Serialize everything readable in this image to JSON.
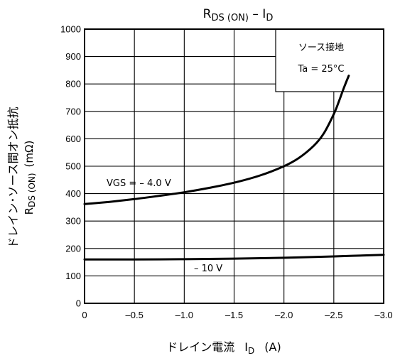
{
  "chart_data": {
    "type": "line",
    "title": {
      "main": "R",
      "main_sub": "DS (ON)",
      "sep": " – ",
      "tail": "I",
      "tail_sub": "D"
    },
    "xlabel": {
      "text": "ドレイン電流",
      "sym": "I",
      "sym_sub": "D",
      "unit": "(A)"
    },
    "ylabel": {
      "line1": "ドレイン･ソース間オン抵抗",
      "line2_main": "R",
      "line2_sub": "DS (ON)",
      "line2_unit": "(mΩ)"
    },
    "x_ticks": [
      "0",
      "–0.5",
      "–1.0",
      "–1.5",
      "–2.0",
      "–2.5",
      "–3.0"
    ],
    "x_tick_values": [
      0,
      -0.5,
      -1.0,
      -1.5,
      -2.0,
      -2.5,
      -3.0
    ],
    "y_ticks": [
      "0",
      "100",
      "200",
      "300",
      "400",
      "500",
      "600",
      "700",
      "800",
      "900",
      "1000"
    ],
    "y_tick_values": [
      0,
      100,
      200,
      300,
      400,
      500,
      600,
      700,
      800,
      900,
      1000
    ],
    "xlim": [
      0,
      -3.0
    ],
    "ylim": [
      0,
      1000
    ],
    "grid": true,
    "legend_box": {
      "line1": "ソース接地",
      "line2": "Ta = 25°C",
      "position": "top-right"
    },
    "series": [
      {
        "name": "VGS = – 4.0 V",
        "x": [
          0,
          -0.25,
          -0.5,
          -0.75,
          -1.0,
          -1.25,
          -1.5,
          -1.75,
          -2.0,
          -2.15,
          -2.3,
          -2.4,
          -2.5,
          -2.55,
          -2.6,
          -2.65
        ],
        "y": [
          362,
          370,
          380,
          392,
          405,
          421,
          440,
          465,
          500,
          530,
          575,
          620,
          690,
          735,
          785,
          830
        ]
      },
      {
        "name": "– 10 V",
        "x": [
          0,
          -0.5,
          -1.0,
          -1.5,
          -2.0,
          -2.5,
          -3.0
        ],
        "y": [
          160,
          160,
          161,
          163,
          166,
          171,
          177
        ]
      }
    ]
  }
}
